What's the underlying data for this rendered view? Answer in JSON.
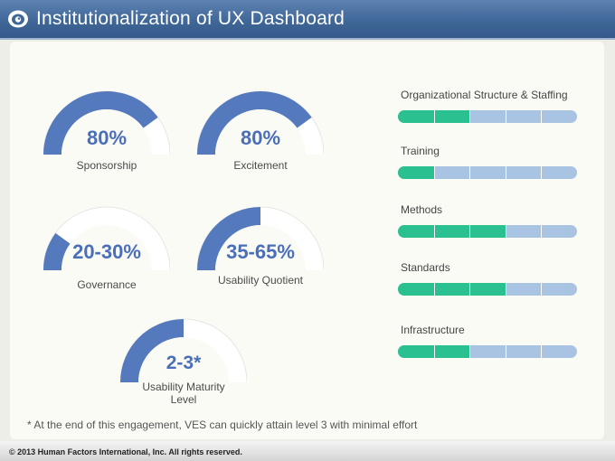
{
  "header": {
    "title": "Institutionalization of UX Dashboard",
    "logo_icon": "eye-icon"
  },
  "gauges": [
    {
      "value": "80%",
      "label": "Sponsorship",
      "fill": 0.8
    },
    {
      "value": "80%",
      "label": "Excitement",
      "fill": 0.8
    },
    {
      "value": "20-30%",
      "label": "Governance",
      "fill": 0.2
    },
    {
      "value": "35-65%",
      "label": "Usability Quotient",
      "fill": 0.5
    },
    {
      "value": "2-3*",
      "label": "Usability Maturity Level",
      "fill": 0.5
    }
  ],
  "categories": [
    {
      "label": "Organizational Structure & Staffing",
      "filled_segments": 2,
      "total_segments": 5
    },
    {
      "label": "Training",
      "filled_segments": 1,
      "total_segments": 5
    },
    {
      "label": "Methods",
      "filled_segments": 3,
      "total_segments": 5
    },
    {
      "label": "Standards",
      "filled_segments": 3,
      "total_segments": 5
    },
    {
      "label": "Infrastructure",
      "filled_segments": 2,
      "total_segments": 5
    }
  ],
  "footnote": "* At the end of this engagement, VES can quickly attain level 3 with minimal effort",
  "footer": {
    "copyright": "© 2013 Human Factors International, Inc. All rights reserved."
  },
  "colors": {
    "header": "#3f6797",
    "gauge_fill": "#5579bd",
    "gauge_track": "#ffffff",
    "gauge_value_text": "#4a6fb8",
    "bar_filled": "#2bc08f",
    "bar_empty": "#a9c3e2"
  }
}
